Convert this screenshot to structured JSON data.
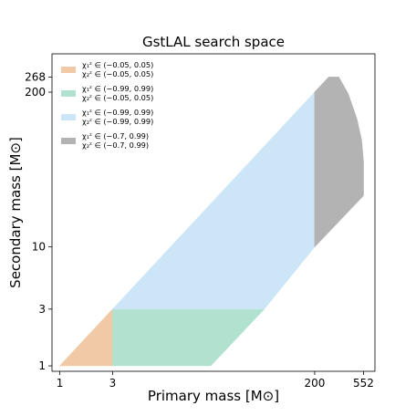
{
  "chart_data": {
    "type": "area",
    "title": "GstLAL search space",
    "xlabel": "Primary mass [M⊙]",
    "ylabel": "Secondary mass [M⊙]",
    "xscale": "log",
    "yscale": "log",
    "xlim": [
      0.85,
      700
    ],
    "ylim": [
      0.9,
      420
    ],
    "xticks": [
      {
        "value": 1,
        "label": "1"
      },
      {
        "value": 3,
        "label": "3"
      },
      {
        "value": 200,
        "label": "200"
      },
      {
        "value": 552,
        "label": "552"
      }
    ],
    "yticks": [
      {
        "value": 1,
        "label": "1"
      },
      {
        "value": 3,
        "label": "3"
      },
      {
        "value": 10,
        "label": "10"
      },
      {
        "value": 200,
        "label": "200"
      },
      {
        "value": 268,
        "label": "268"
      }
    ],
    "grid": false,
    "legend_position": "upper-left",
    "series": [
      {
        "name_lines": [
          "χ₁ᶻ ∈ (−0.05, 0.05)",
          "χ₂ᶻ ∈ (−0.05, 0.05)"
        ],
        "color": "#f2c9a6",
        "polygon": [
          [
            1.1,
            1.1
          ],
          [
            3.0,
            3.0
          ],
          [
            3.0,
            1.0
          ],
          [
            1.0,
            1.0
          ]
        ]
      },
      {
        "name_lines": [
          "χ₁ᶻ ∈ (−0.99, 0.99)",
          "χ₂ᶻ ∈ (−0.05, 0.05)"
        ],
        "color": "#b0e2cf",
        "polygon": [
          [
            3.0,
            1.0
          ],
          [
            3.0,
            3.0
          ],
          [
            70,
            3.0
          ],
          [
            23,
            1.0
          ]
        ]
      },
      {
        "name_lines": [
          "χ₁ᶻ ∈ (−0.99, 0.99)",
          "χ₂ᶻ ∈ (−0.99, 0.99)"
        ],
        "color": "#cce6f7",
        "polygon": [
          [
            3.0,
            3.0
          ],
          [
            200,
            200
          ],
          [
            200,
            10
          ],
          [
            70,
            3.0
          ]
        ]
      },
      {
        "name_lines": [
          "χ₁ᶻ ∈ (−0.7, 0.99)",
          "χ₂ᶻ ∈ (−0.7, 0.99)"
        ],
        "color": "#b3b3b3",
        "polygon": [
          [
            200,
            200
          ],
          [
            268,
            268
          ],
          [
            330,
            268
          ],
          [
            400,
            195
          ],
          [
            480,
            120
          ],
          [
            530,
            80
          ],
          [
            552,
            52
          ],
          [
            552,
            27
          ],
          [
            200,
            10
          ]
        ]
      }
    ]
  }
}
